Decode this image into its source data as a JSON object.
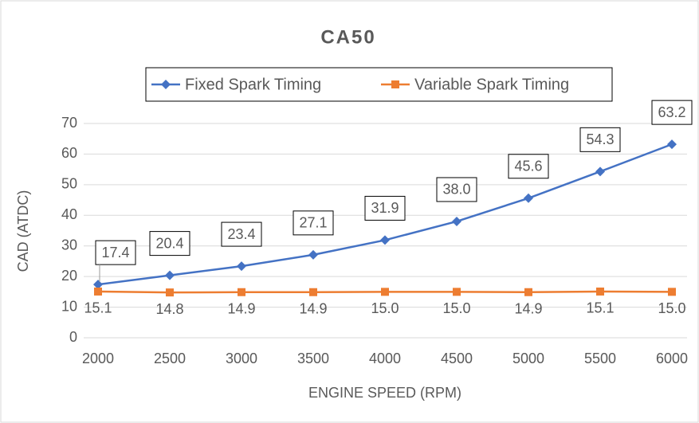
{
  "chart_data": {
    "type": "line",
    "title": "CA50",
    "categories": [
      "2000",
      "2500",
      "3000",
      "3500",
      "4000",
      "4500",
      "5000",
      "5500",
      "6000"
    ],
    "series": [
      {
        "name": "Fixed Spark Timing",
        "color": "#4472c4",
        "marker": "diamond",
        "values": [
          17.4,
          20.4,
          23.4,
          27.1,
          31.9,
          38.0,
          45.6,
          54.3,
          63.2
        ],
        "value_labels": [
          "17.4",
          "20.4",
          "23.4",
          "27.1",
          "31.9",
          "38.0",
          "45.6",
          "54.3",
          "63.2"
        ]
      },
      {
        "name": "Variable Spark Timing",
        "color": "#ed7d31",
        "marker": "square",
        "values": [
          15.1,
          14.8,
          14.9,
          14.9,
          15.0,
          15.0,
          14.9,
          15.1,
          15.0
        ],
        "value_labels": [
          "15.1",
          "14.8",
          "14.9",
          "14.9",
          "15.0",
          "15.0",
          "14.9",
          "15.1",
          "15.0"
        ]
      }
    ],
    "xlabel": "ENGINE SPEED (RPM)",
    "ylabel": "CAD (ATDC)",
    "ylim": [
      0,
      70
    ],
    "yticks": [
      0,
      10,
      20,
      30,
      40,
      50,
      60,
      70
    ],
    "grid": true,
    "legend": "top"
  }
}
